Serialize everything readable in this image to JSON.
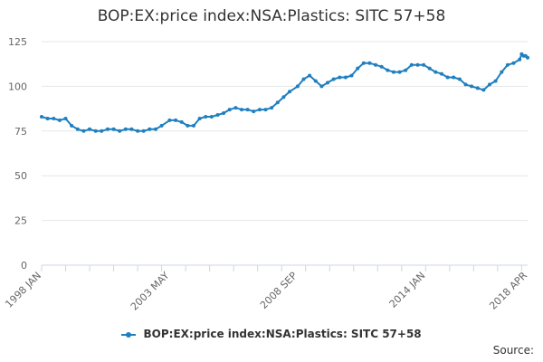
{
  "chart_data": {
    "type": "line",
    "title": "BOP:EX:price index:NSA:Plastics: SITC 57+58",
    "xlabel": "",
    "ylabel": "",
    "x_range": [
      "1998-01",
      "2018-04"
    ],
    "ylim": [
      0,
      125
    ],
    "yticks": [
      0,
      25,
      50,
      75,
      100,
      125
    ],
    "xtick_labels": [
      {
        "date": "1998-01",
        "label": "1998 JAN"
      },
      {
        "date": "2003-05",
        "label": "2003 MAY"
      },
      {
        "date": "2008-09",
        "label": "2008 SEP"
      },
      {
        "date": "2014-01",
        "label": "2014 JAN"
      },
      {
        "date": "2018-04",
        "label": "2018 APR"
      }
    ],
    "grid": "horizontal",
    "legend": "bottom-center",
    "series": [
      {
        "name": "BOP:EX:price index:NSA:Plastics: SITC 57+58",
        "color": "#1f7fbf",
        "points": [
          [
            "1998-01",
            83
          ],
          [
            "1998-04",
            82
          ],
          [
            "1998-07",
            82
          ],
          [
            "1998-10",
            81
          ],
          [
            "1999-01",
            82
          ],
          [
            "1999-04",
            78
          ],
          [
            "1999-07",
            76
          ],
          [
            "1999-10",
            75
          ],
          [
            "2000-01",
            76
          ],
          [
            "2000-04",
            75
          ],
          [
            "2000-07",
            75
          ],
          [
            "2000-10",
            76
          ],
          [
            "2001-01",
            76
          ],
          [
            "2001-04",
            75
          ],
          [
            "2001-07",
            76
          ],
          [
            "2001-10",
            76
          ],
          [
            "2002-01",
            75
          ],
          [
            "2002-04",
            75
          ],
          [
            "2002-07",
            76
          ],
          [
            "2002-10",
            76
          ],
          [
            "2003-01",
            78
          ],
          [
            "2003-05",
            81
          ],
          [
            "2003-08",
            81
          ],
          [
            "2003-11",
            80
          ],
          [
            "2004-02",
            78
          ],
          [
            "2004-05",
            78
          ],
          [
            "2004-08",
            82
          ],
          [
            "2004-11",
            83
          ],
          [
            "2005-02",
            83
          ],
          [
            "2005-05",
            84
          ],
          [
            "2005-08",
            85
          ],
          [
            "2005-11",
            87
          ],
          [
            "2006-02",
            88
          ],
          [
            "2006-05",
            87
          ],
          [
            "2006-08",
            87
          ],
          [
            "2006-11",
            86
          ],
          [
            "2007-02",
            87
          ],
          [
            "2007-05",
            87
          ],
          [
            "2007-08",
            88
          ],
          [
            "2007-11",
            91
          ],
          [
            "2008-02",
            94
          ],
          [
            "2008-05",
            97
          ],
          [
            "2008-09",
            100
          ],
          [
            "2008-12",
            104
          ],
          [
            "2009-03",
            106
          ],
          [
            "2009-06",
            103
          ],
          [
            "2009-09",
            100
          ],
          [
            "2009-12",
            102
          ],
          [
            "2010-03",
            104
          ],
          [
            "2010-06",
            105
          ],
          [
            "2010-09",
            105
          ],
          [
            "2010-12",
            106
          ],
          [
            "2011-03",
            110
          ],
          [
            "2011-06",
            113
          ],
          [
            "2011-09",
            113
          ],
          [
            "2011-12",
            112
          ],
          [
            "2012-03",
            111
          ],
          [
            "2012-06",
            109
          ],
          [
            "2012-09",
            108
          ],
          [
            "2012-12",
            108
          ],
          [
            "2013-03",
            109
          ],
          [
            "2013-06",
            112
          ],
          [
            "2013-09",
            112
          ],
          [
            "2013-12",
            112
          ],
          [
            "2014-03",
            110
          ],
          [
            "2014-06",
            108
          ],
          [
            "2014-09",
            107
          ],
          [
            "2014-12",
            105
          ],
          [
            "2015-03",
            105
          ],
          [
            "2015-06",
            104
          ],
          [
            "2015-09",
            101
          ],
          [
            "2015-12",
            100
          ],
          [
            "2016-03",
            99
          ],
          [
            "2016-06",
            98
          ],
          [
            "2016-09",
            101
          ],
          [
            "2016-12",
            103
          ],
          [
            "2017-03",
            108
          ],
          [
            "2017-06",
            112
          ],
          [
            "2017-09",
            113
          ],
          [
            "2017-12",
            115
          ],
          [
            "2018-01",
            118
          ],
          [
            "2018-02",
            117
          ],
          [
            "2018-03",
            117
          ],
          [
            "2018-04",
            116
          ]
        ]
      }
    ]
  },
  "legend": {
    "label": "BOP:EX:price index:NSA:Plastics: SITC 57+58"
  },
  "source_label": "Source:"
}
